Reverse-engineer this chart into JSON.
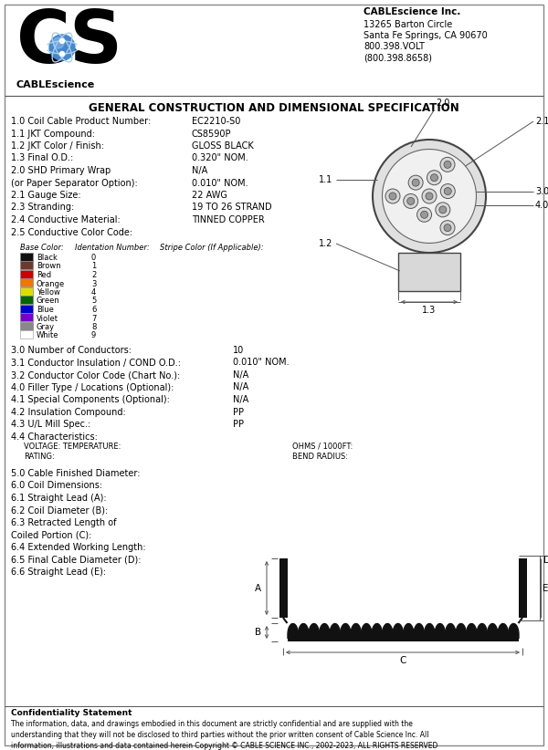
{
  "title": "GENERAL CONSTRUCTION AND DIMENSIONAL SPECIFICATION",
  "company_name": "CABLEscience Inc.",
  "company_line2": "13265 Barton Circle",
  "company_line3": "Santa Fe Springs, CA 90670",
  "company_line4": "800.398.VOLT",
  "company_line5": "(800.398.8658)",
  "bg_color": "#ffffff",
  "specs": [
    [
      "1.0 Coil Cable Product Number:",
      "EC2210-S0",
      false
    ],
    [
      "1.1 JKT Compound:",
      "CS8590P",
      false
    ],
    [
      "1.2 JKT Color / Finish:",
      "GLOSS BLACK",
      false
    ],
    [
      "1.3 Final O.D.:",
      "0.320\" NOM.",
      false
    ],
    [
      "2.0 SHD Primary Wrap",
      "N/A",
      false
    ],
    [
      "(or Paper Separator Option):",
      "0.010\" NOM.",
      false
    ],
    [
      "2.1 Gauge Size:",
      "22 AWG",
      false
    ],
    [
      "2.3 Stranding:",
      "19 TO 26 STRAND",
      false
    ],
    [
      "2.4 Conductive Material:",
      "TINNED COPPER",
      false
    ],
    [
      "2.5 Conductive Color Code:",
      "",
      false
    ]
  ],
  "color_table_headers": [
    "Base Color:",
    "Identation Number:",
    "Stripe Color (If Applicable):"
  ],
  "color_table_rows": [
    [
      "Black",
      "#111111",
      "0"
    ],
    [
      "Brown",
      "#6b3a2a",
      "1"
    ],
    [
      "Red",
      "#cc0000",
      "2"
    ],
    [
      "Orange",
      "#ee7700",
      "3"
    ],
    [
      "Yellow",
      "#dddd00",
      "4"
    ],
    [
      "Green",
      "#006600",
      "5"
    ],
    [
      "Blue",
      "#0000cc",
      "6"
    ],
    [
      "Violet",
      "#7700cc",
      "7"
    ],
    [
      "Gray",
      "#888888",
      "8"
    ],
    [
      "White",
      "#ffffff",
      "9"
    ]
  ],
  "specs2": [
    [
      "3.0 Number of Conductors:",
      "10"
    ],
    [
      "3.1 Conductor Insulation / COND O.D.:",
      "0.010\" NOM."
    ],
    [
      "3.2 Conductor Color Code (Chart No.):",
      "N/A"
    ],
    [
      "4.0 Filler Type / Locations (Optional):",
      "N/A"
    ],
    [
      "4.1 Special Components (Optional):",
      "N/A"
    ],
    [
      "4.2 Insulation Compound:",
      "PP"
    ],
    [
      "4.3 U/L Mill Spec.:",
      "PP"
    ]
  ],
  "characteristics_labels": [
    "VOLTAGE: TEMPERATURE:",
    "RATING:"
  ],
  "ohms_labels": [
    "OHMS / 1000FT:",
    "BEND RADIUS:"
  ],
  "specs3": [
    "5.0 Cable Finished Diameter:",
    "6.0 Coil Dimensions:",
    "6.1 Straight Lead (A):",
    "6.2 Coil Diameter (B):",
    "6.3 Retracted Length of",
    "Coiled Portion (C):",
    "6.4 Extended Working Length:",
    "6.5 Final Cable Diameter (D):",
    "6.6 Straight Lead (E):"
  ],
  "confidentiality_title": "Confidentiality Statement",
  "confidentiality_text": "The information, data, and drawings embodied in this document are strictly confidential and are supplied with the\nunderstanding that they will not be disclosed to third parties without the prior written consent of Cable Science Inc. All\ninformation, illustrations and data contained herein Copyright © CABLE SCIENCE INC., 2002-2023, ALL RIGHTS RESERVED"
}
